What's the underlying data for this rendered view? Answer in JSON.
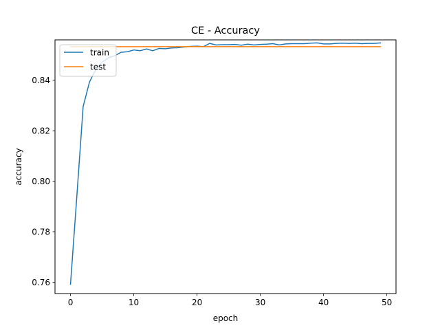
{
  "chart_data": {
    "type": "line",
    "title": "CE - Accuracy",
    "xlabel": "epoch",
    "ylabel": "accuracy",
    "xlim": [
      -2.45,
      51.45
    ],
    "ylim": [
      0.7555,
      0.856
    ],
    "x_ticks": [
      0,
      10,
      20,
      30,
      40,
      50
    ],
    "y_ticks": [
      0.76,
      0.78,
      0.8,
      0.82,
      0.84
    ],
    "y_tick_labels": [
      "0.76",
      "0.78",
      "0.80",
      "0.82",
      "0.84"
    ],
    "grid": false,
    "legend": "upper-left",
    "series": [
      {
        "name": "train",
        "color": "#1f77b4",
        "x": [
          0,
          1,
          2,
          3,
          4,
          5,
          6,
          7,
          8,
          9,
          10,
          11,
          12,
          13,
          14,
          15,
          16,
          17,
          18,
          19,
          20,
          21,
          22,
          23,
          24,
          25,
          26,
          27,
          28,
          29,
          30,
          31,
          32,
          33,
          34,
          35,
          36,
          37,
          38,
          39,
          40,
          41,
          42,
          43,
          44,
          45,
          46,
          47,
          48,
          49
        ],
        "values": [
          0.7592,
          0.794,
          0.8296,
          0.8393,
          0.8443,
          0.8472,
          0.8489,
          0.8497,
          0.8511,
          0.8513,
          0.852,
          0.8517,
          0.8524,
          0.8517,
          0.8526,
          0.8525,
          0.8528,
          0.8529,
          0.8532,
          0.8534,
          0.8535,
          0.8533,
          0.8546,
          0.854,
          0.8541,
          0.8541,
          0.8542,
          0.8539,
          0.8543,
          0.854,
          0.8542,
          0.8543,
          0.8545,
          0.854,
          0.8544,
          0.8545,
          0.8545,
          0.8545,
          0.8547,
          0.8548,
          0.8544,
          0.8544,
          0.8546,
          0.8547,
          0.8546,
          0.8547,
          0.8545,
          0.8546,
          0.8546,
          0.8548
        ]
      },
      {
        "name": "test",
        "color": "#ff7f0e",
        "x": [
          0,
          49
        ],
        "values": [
          0.8533,
          0.8533
        ]
      }
    ]
  }
}
